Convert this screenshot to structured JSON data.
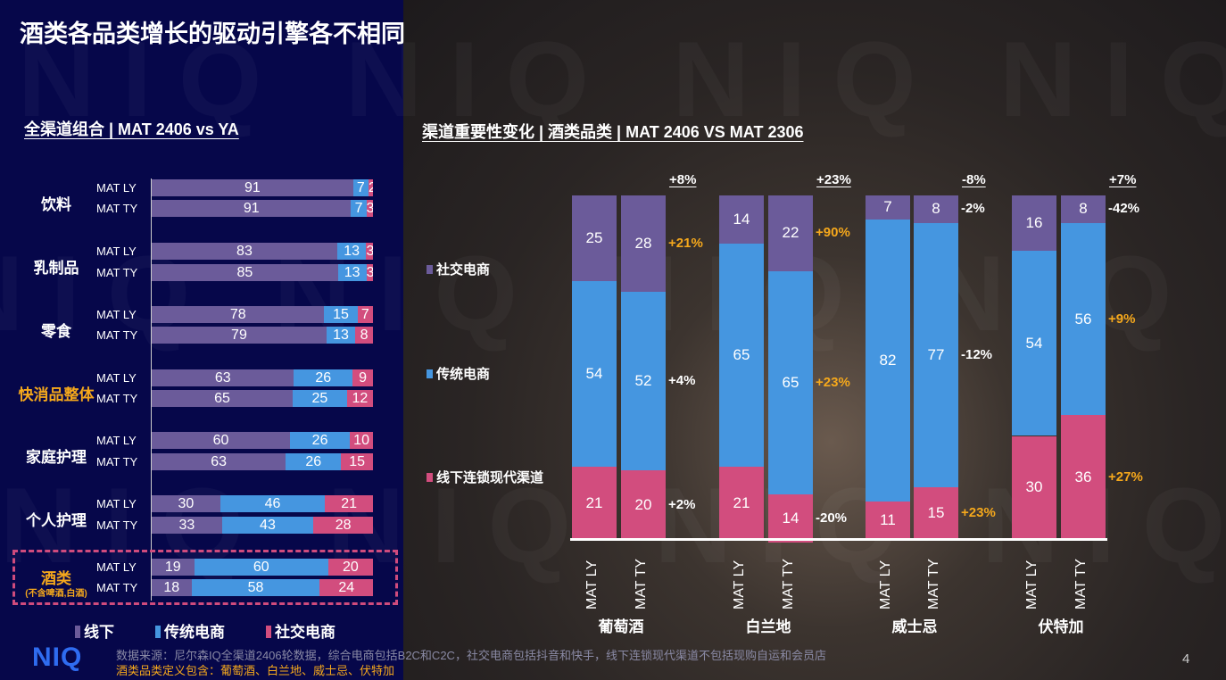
{
  "title": "酒类各品类增长的驱动引擎各不相同",
  "colors": {
    "offline": "#6b5b9a",
    "ecom": "#4596e0",
    "social": "#d24d7e",
    "highlight": "#f5a81c"
  },
  "left": {
    "heading": "全渠道组合 | MAT 2406 vs YA",
    "categories": [
      {
        "name": "饮料",
        "highlight": false,
        "rows": [
          {
            "label": "MAT LY",
            "values": [
              91,
              7,
              2
            ]
          },
          {
            "label": "MAT TY",
            "values": [
              91,
              7,
              3
            ]
          }
        ]
      },
      {
        "name": "乳制品",
        "highlight": false,
        "rows": [
          {
            "label": "MAT LY",
            "values": [
              83,
              13,
              3
            ]
          },
          {
            "label": "MAT TY",
            "values": [
              85,
              13,
              3
            ]
          }
        ]
      },
      {
        "name": "零食",
        "highlight": false,
        "rows": [
          {
            "label": "MAT LY",
            "values": [
              78,
              15,
              7
            ]
          },
          {
            "label": "MAT TY",
            "values": [
              79,
              13,
              8
            ]
          }
        ]
      },
      {
        "name": "快消品整体",
        "highlight": true,
        "rows": [
          {
            "label": "MAT LY",
            "values": [
              63,
              26,
              9
            ]
          },
          {
            "label": "MAT TY",
            "values": [
              65,
              25,
              12
            ]
          }
        ]
      },
      {
        "name": "家庭护理",
        "highlight": false,
        "rows": [
          {
            "label": "MAT LY",
            "values": [
              60,
              26,
              10
            ]
          },
          {
            "label": "MAT TY",
            "values": [
              63,
              26,
              15
            ]
          }
        ]
      },
      {
        "name": "个人护理",
        "highlight": false,
        "rows": [
          {
            "label": "MAT LY",
            "values": [
              30,
              46,
              21
            ]
          },
          {
            "label": "MAT TY",
            "values": [
              33,
              43,
              28
            ]
          }
        ]
      },
      {
        "name": "酒类",
        "sub": "(不含啤酒,白酒)",
        "highlight": true,
        "rows": [
          {
            "label": "MAT LY",
            "values": [
              19,
              60,
              20
            ]
          },
          {
            "label": "MAT TY",
            "values": [
              18,
              58,
              24
            ]
          }
        ]
      }
    ],
    "legend": [
      "线下",
      "传统电商",
      "社交电商"
    ]
  },
  "right": {
    "heading": "渠道重要性变化 | 酒类品类 | MAT 2406 VS MAT 2306",
    "series_labels": [
      "社交电商",
      "传统电商",
      "线下连锁现代渠道"
    ],
    "groups": [
      {
        "name": "葡萄酒",
        "total": "+8%",
        "cols": [
          {
            "label": "MAT LY",
            "social": 25,
            "ecom": 54,
            "offline": 21
          },
          {
            "label": "MAT TY",
            "social": 28,
            "ecom": 52,
            "offline": 20
          }
        ],
        "changes": [
          {
            "v": "+21%",
            "hl": true
          },
          {
            "v": "+4%",
            "hl": false
          },
          {
            "v": "+2%",
            "hl": false
          }
        ]
      },
      {
        "name": "白兰地",
        "total": "+23%",
        "cols": [
          {
            "label": "MAT LY",
            "social": 14,
            "ecom": 65,
            "offline": 21
          },
          {
            "label": "MAT TY",
            "social": 22,
            "ecom": 65,
            "offline": 14
          }
        ],
        "changes": [
          {
            "v": "+90%",
            "hl": true
          },
          {
            "v": "+23%",
            "hl": true
          },
          {
            "v": "-20%",
            "hl": false
          }
        ]
      },
      {
        "name": "威士忌",
        "total": "-8%",
        "cols": [
          {
            "label": "MAT LY",
            "social": 7,
            "ecom": 82,
            "offline": 11
          },
          {
            "label": "MAT TY",
            "social": 8,
            "ecom": 77,
            "offline": 15
          }
        ],
        "changes": [
          {
            "v": "-2%",
            "hl": false
          },
          {
            "v": "-12%",
            "hl": false
          },
          {
            "v": "+23%",
            "hl": true
          }
        ]
      },
      {
        "name": "伏特加",
        "total": "+7%",
        "cols": [
          {
            "label": "MAT LY",
            "social": 16,
            "ecom": 54,
            "offline": 30
          },
          {
            "label": "MAT TY",
            "social": 8,
            "ecom": 56,
            "offline": 36
          }
        ],
        "changes": [
          {
            "v": "-42%",
            "hl": false
          },
          {
            "v": "+9%",
            "hl": true
          },
          {
            "v": "+27%",
            "hl": true
          }
        ]
      }
    ]
  },
  "footer": {
    "logo": "NIQ",
    "source": "数据来源：尼尔森IQ全渠道2406轮数据，综合电商包括B2C和C2C，社交电商包括抖音和快手，线下连锁现代渠道不包括现购自运和会员店",
    "definition": "酒类品类定义包含：葡萄酒、白兰地、威士忌、伏特加",
    "page": "4"
  }
}
